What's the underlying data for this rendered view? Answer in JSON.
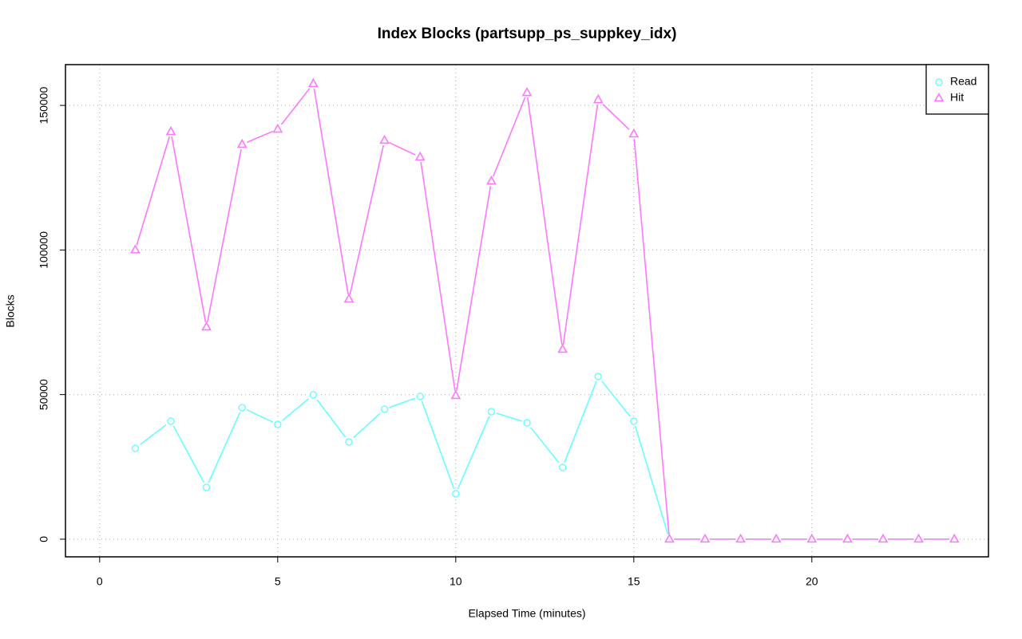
{
  "chart_data": {
    "type": "line",
    "title": "Index Blocks (partsupp_ps_suppkey_idx)",
    "x_label": "Elapsed Time (minutes)",
    "y_label": "Blocks",
    "x": [
      1,
      2,
      3,
      4,
      5,
      6,
      7,
      8,
      9,
      10,
      11,
      12,
      13,
      14,
      15,
      16,
      17,
      18,
      19,
      20,
      21,
      22,
      23,
      24
    ],
    "series": [
      {
        "name": "Read",
        "color": "#66ffff",
        "marker": "circle",
        "values": [
          31440,
          40820,
          17930,
          45500,
          39710,
          49920,
          33650,
          44950,
          49370,
          15720,
          44130,
          40260,
          24820,
          56260,
          40820,
          0,
          0,
          0,
          0,
          0,
          0,
          0,
          0,
          0
        ]
      },
      {
        "name": "Hit",
        "color": "#ff77ff",
        "marker": "triangle",
        "values": [
          100000,
          140900,
          73360,
          136500,
          141750,
          157500,
          83000,
          137900,
          132100,
          49640,
          123800,
          154400,
          65640,
          151950,
          140100,
          0,
          0,
          0,
          0,
          0,
          0,
          0,
          0,
          0
        ]
      }
    ],
    "xlim": [
      -0.96,
      24.96
    ],
    "ylim": [
      -6100,
      164100
    ],
    "xticks": [
      0,
      5,
      10,
      15,
      20
    ],
    "yticks": [
      0,
      50000,
      100000,
      150000
    ],
    "grid": true,
    "legend": "topright"
  }
}
